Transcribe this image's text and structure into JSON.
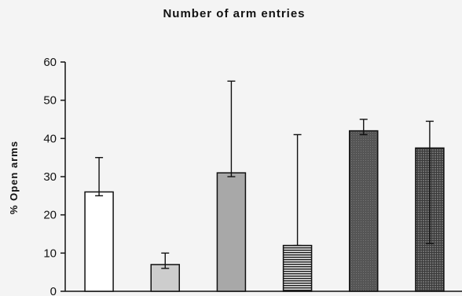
{
  "chart_data": {
    "type": "bar",
    "title": "Number of arm entries",
    "xlabel": "",
    "ylabel": "% Open arms",
    "ylim": [
      0,
      60
    ],
    "yticks": [
      0,
      10,
      20,
      30,
      40,
      50,
      60
    ],
    "categories": [
      "",
      "",
      "",
      "",
      "",
      ""
    ],
    "values": [
      26,
      7,
      31,
      12,
      42,
      37.5
    ],
    "error_upper": [
      35,
      10,
      55,
      41,
      45,
      44.5
    ],
    "error_lower": [
      25,
      6,
      30,
      12,
      41,
      12.5
    ],
    "bar_fills": [
      "white",
      "light-gray",
      "mid-gray",
      "horizontal-stripes",
      "dark-gray",
      "dark-crosshatch"
    ],
    "grid": false,
    "legend": "none"
  }
}
